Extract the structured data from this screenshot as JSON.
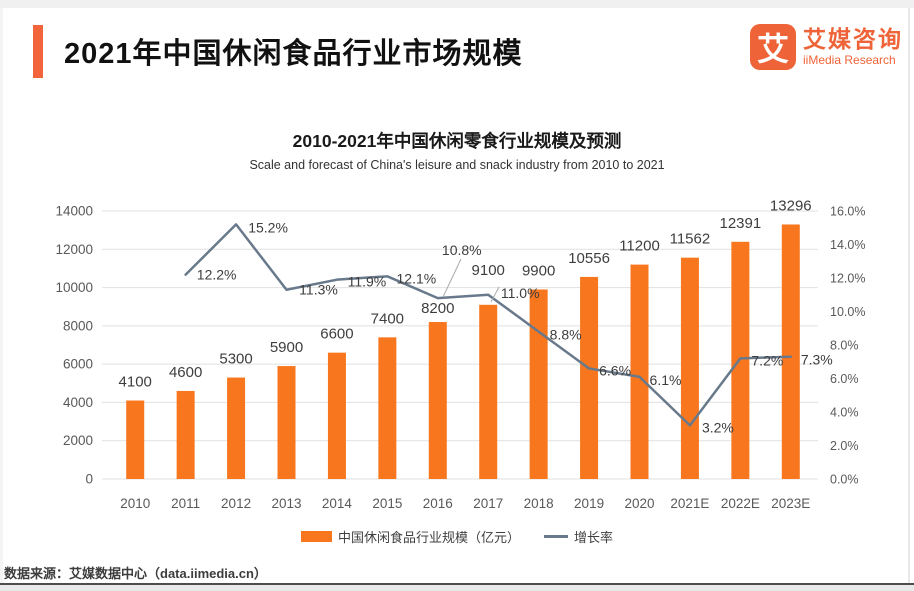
{
  "header": {
    "title": "2021年中国休闲食品行业市场规模",
    "logo": {
      "glyph": "艾",
      "name": "艾媒咨询",
      "subname": "iiMedia Research"
    }
  },
  "chart_data": {
    "type": "bar",
    "title": "2010-2021年中国休闲零食行业规模及预测",
    "subtitle": "Scale and forecast of China's leisure and snack industry from 2010 to 2021",
    "categories": [
      "2010",
      "2011",
      "2012",
      "2013",
      "2014",
      "2015",
      "2016",
      "2017",
      "2018",
      "2019",
      "2020",
      "2021E",
      "2022E",
      "2023E"
    ],
    "series": [
      {
        "name": "中国休闲食品行业规模（亿元）",
        "type": "bar",
        "axis": "left",
        "values": [
          4100,
          4600,
          5300,
          5900,
          6600,
          7400,
          8200,
          9100,
          9900,
          10556,
          11200,
          11562,
          12391,
          13296
        ]
      },
      {
        "name": "增长率",
        "type": "line",
        "axis": "right",
        "values": [
          null,
          12.2,
          15.2,
          11.3,
          11.9,
          12.1,
          10.8,
          11.0,
          8.8,
          6.6,
          6.1,
          3.2,
          7.2,
          7.3
        ],
        "labels": [
          null,
          "12.2%",
          "15.2%",
          "11.3%",
          "11.9%",
          "12.1%",
          "10.8%",
          "11.0%",
          "8.8%",
          "6.6%",
          "6.1%",
          "3.2%",
          "7.2%",
          "7.3%"
        ]
      }
    ],
    "left_axis": {
      "min": 0,
      "max": 14000,
      "step": 2000,
      "ticks": [
        "0",
        "2000",
        "4000",
        "6000",
        "8000",
        "10000",
        "12000",
        "14000"
      ]
    },
    "right_axis": {
      "min": 0,
      "max": 16,
      "step": 2,
      "ticks": [
        "0.0%",
        "2.0%",
        "4.0%",
        "6.0%",
        "8.0%",
        "10.0%",
        "12.0%",
        "14.0%",
        "16.0%"
      ]
    },
    "grid": true,
    "legend_position": "bottom"
  },
  "footer": {
    "source": "数据来源：艾媒数据中心（data.iimedia.cn）"
  },
  "colors": {
    "bar": "#f8761d",
    "line": "#69798c",
    "brand": "#ee6337",
    "accent": "#f2653c",
    "grid": "#e1e1e1",
    "tick_text": "#595959",
    "label_text": "#3e3e3e"
  }
}
